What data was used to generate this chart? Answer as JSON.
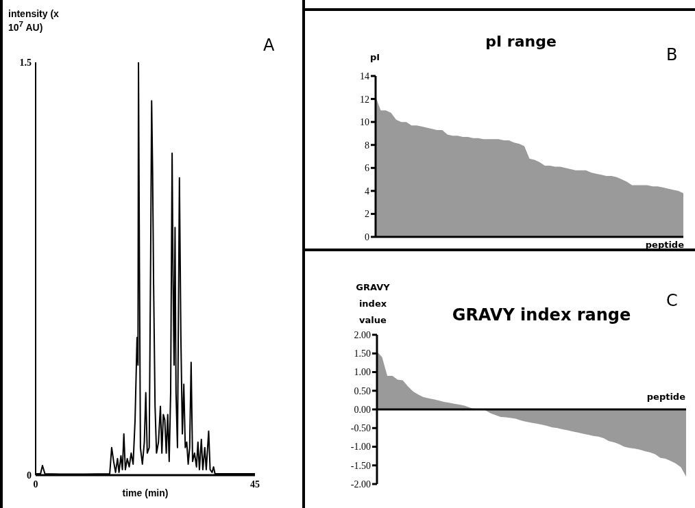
{
  "chart_data": [
    {
      "type": "line",
      "xlabel": "time (min)",
      "ylabel": "intensity (x 10$^{7}$ AU)",
      "annotations": [
        "A"
      ],
      "color": "#000000",
      "marker": "none",
      "xlim": [
        0,
        45
      ],
      "xticks": [
        0,
        45
      ],
      "ylim": [
        0,
        1.5
      ],
      "yticks": [
        0,
        1.5
      ],
      "x": [
        0,
        1.0,
        1.4,
        1.9,
        5,
        10,
        15.2,
        15.6,
        16.0,
        16.4,
        16.8,
        17.1,
        17.5,
        17.8,
        18.1,
        18.4,
        18.8,
        19.2,
        19.6,
        20.0,
        20.4,
        20.8,
        21.0,
        21.1,
        21.3,
        21.5,
        21.9,
        22.3,
        22.6,
        22.9,
        23.3,
        23.6,
        23.8,
        24.0,
        24.2,
        24.5,
        24.8,
        25.2,
        25.6,
        25.9,
        26.2,
        26.5,
        26.8,
        27.1,
        27.4,
        27.7,
        28.0,
        28.2,
        28.4,
        28.6,
        28.8,
        29.1,
        29.5,
        29.8,
        30.1,
        30.4,
        30.7,
        31.0,
        31.3,
        31.6,
        31.9,
        32.2,
        32.6,
        33.0,
        33.3,
        33.6,
        34.0,
        34.3,
        34.7,
        35.0,
        35.5,
        35.8,
        36.2,
        36.5,
        36.8,
        40,
        45
      ],
      "values": [
        0.005,
        0.005,
        0.035,
        0.005,
        0.004,
        0.004,
        0.005,
        0.1,
        0.05,
        0.01,
        0.06,
        0.01,
        0.07,
        0.02,
        0.15,
        0.02,
        0.06,
        0.03,
        0.08,
        0.04,
        0.2,
        0.5,
        0.4,
        1.5,
        0.75,
        0.1,
        0.04,
        0.12,
        0.3,
        0.08,
        0.1,
        0.8,
        1.36,
        1.1,
        0.7,
        0.25,
        0.08,
        0.12,
        0.25,
        0.08,
        0.22,
        0.2,
        0.08,
        0.22,
        0.05,
        0.3,
        1.17,
        0.7,
        0.4,
        0.9,
        0.3,
        0.1,
        1.08,
        0.5,
        0.15,
        0.33,
        0.1,
        0.12,
        0.04,
        0.1,
        0.41,
        0.05,
        0.08,
        0.03,
        0.12,
        0.02,
        0.13,
        0.02,
        0.1,
        0.02,
        0.16,
        0.02,
        0.01,
        0.03,
        0.005,
        0.005,
        0.005
      ]
    },
    {
      "type": "area",
      "title": "pI range",
      "xlabel": "peptide",
      "ylabel": "pI",
      "annotations": [
        "B"
      ],
      "color": "#999a99",
      "ylim": [
        0,
        14
      ],
      "yticks": [
        0,
        2,
        4,
        6,
        8,
        10,
        12,
        14
      ],
      "categories": [
        null,
        null,
        null,
        null,
        null,
        null,
        null,
        null,
        null,
        null,
        null,
        null,
        null,
        null,
        null,
        null,
        null,
        null,
        null,
        null,
        null,
        null,
        null,
        null,
        null,
        null,
        null,
        null,
        null,
        null,
        null,
        null,
        null,
        null,
        null,
        null,
        null,
        null,
        null,
        null,
        null,
        null,
        null,
        null,
        null,
        null,
        null,
        null,
        null,
        null,
        null,
        null,
        null,
        null,
        null,
        null,
        null,
        null,
        null,
        null,
        null
      ],
      "values": [
        12.2,
        11.0,
        11.0,
        10.8,
        10.2,
        10.0,
        10.0,
        9.7,
        9.7,
        9.6,
        9.5,
        9.4,
        9.3,
        9.3,
        8.9,
        8.8,
        8.8,
        8.7,
        8.7,
        8.6,
        8.6,
        8.5,
        8.5,
        8.5,
        8.5,
        8.4,
        8.4,
        8.2,
        8.1,
        7.9,
        6.8,
        6.7,
        6.5,
        6.2,
        6.2,
        6.1,
        6.1,
        6.0,
        5.9,
        5.8,
        5.8,
        5.8,
        5.6,
        5.5,
        5.4,
        5.3,
        5.3,
        5.2,
        5.0,
        4.8,
        4.5,
        4.5,
        4.5,
        4.5,
        4.4,
        4.4,
        4.3,
        4.2,
        4.1,
        4.0,
        3.8
      ]
    },
    {
      "type": "area",
      "title": "GRAVY index range",
      "xlabel": "peptide",
      "ylabel": "GRAVY index value",
      "annotations": [
        "C"
      ],
      "color": "#999a99",
      "ylim": [
        -2,
        2
      ],
      "yticks": [
        {
          "value": -2,
          "label": "-2.00"
        },
        {
          "value": -1.5,
          "label": "-1.50"
        },
        {
          "value": -1,
          "label": "-1.00"
        },
        {
          "value": -0.5,
          "label": "-0.50"
        },
        {
          "value": 0,
          "label": "0.00"
        },
        {
          "value": 0.5,
          "label": "0.50"
        },
        {
          "value": 1,
          "label": "1.00"
        },
        {
          "value": 1.5,
          "label": "1.50"
        },
        {
          "value": 2,
          "label": "2.00"
        }
      ],
      "categories": [
        null,
        null,
        null,
        null,
        null,
        null,
        null,
        null,
        null,
        null,
        null,
        null,
        null,
        null,
        null,
        null,
        null,
        null,
        null,
        null,
        null,
        null,
        null,
        null,
        null,
        null,
        null,
        null,
        null,
        null,
        null,
        null,
        null,
        null,
        null,
        null,
        null,
        null,
        null,
        null,
        null,
        null,
        null,
        null,
        null,
        null,
        null,
        null,
        null,
        null,
        null,
        null,
        null,
        null,
        null,
        null,
        null,
        null,
        null,
        null,
        null
      ],
      "values": [
        1.55,
        1.4,
        0.9,
        0.9,
        0.8,
        0.78,
        0.62,
        0.48,
        0.4,
        0.33,
        0.3,
        0.27,
        0.24,
        0.2,
        0.18,
        0.15,
        0.13,
        0.1,
        0.05,
        0.0,
        0.0,
        -0.02,
        -0.1,
        -0.15,
        -0.2,
        -0.21,
        -0.23,
        -0.25,
        -0.3,
        -0.33,
        -0.36,
        -0.38,
        -0.41,
        -0.44,
        -0.48,
        -0.5,
        -0.53,
        -0.56,
        -0.59,
        -0.62,
        -0.65,
        -0.68,
        -0.71,
        -0.73,
        -0.77,
        -0.85,
        -0.88,
        -0.93,
        -1.0,
        -1.03,
        -1.05,
        -1.08,
        -1.12,
        -1.15,
        -1.2,
        -1.3,
        -1.32,
        -1.38,
        -1.45,
        -1.55,
        -1.8
      ]
    }
  ]
}
